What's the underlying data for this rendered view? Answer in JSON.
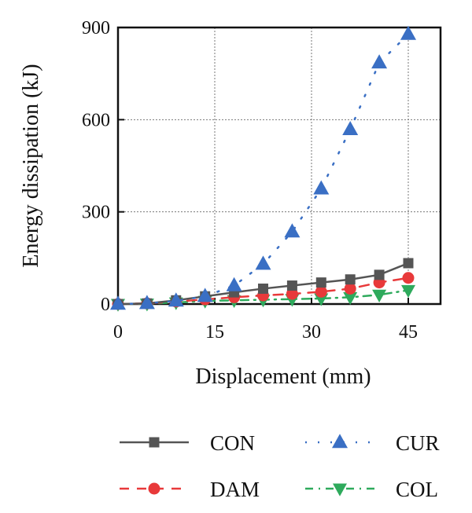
{
  "chart_data": {
    "type": "line",
    "xlabel": "Displacement (mm)",
    "ylabel": "Energy dissipation (kJ)",
    "xlim": [
      0,
      50
    ],
    "ylim": [
      0,
      900
    ],
    "xticks": [
      0,
      15,
      30,
      45
    ],
    "yticks": [
      0,
      300,
      600,
      900
    ],
    "grid": true,
    "legend_position": "bottom",
    "x": [
      0,
      4.5,
      9,
      13.5,
      18,
      22.5,
      27,
      31.5,
      36,
      40.5,
      45
    ],
    "series": [
      {
        "name": "CON",
        "color": "#555555",
        "marker": "square",
        "line": "solid",
        "values": [
          0,
          2,
          12,
          25,
          38,
          50,
          60,
          70,
          80,
          95,
          133
        ]
      },
      {
        "name": "CUR",
        "color": "#3a6fc4",
        "marker": "triangle-up",
        "line": "dotted",
        "values": [
          0,
          2,
          10,
          25,
          60,
          130,
          235,
          375,
          568,
          785,
          878
        ]
      },
      {
        "name": "DAM",
        "color": "#e8393a",
        "marker": "circle",
        "line": "dashed",
        "values": [
          0,
          2,
          8,
          15,
          22,
          28,
          33,
          40,
          50,
          70,
          85
        ]
      },
      {
        "name": "COL",
        "color": "#2eaa5c",
        "marker": "triangle-down",
        "line": "dashdot",
        "values": [
          0,
          1,
          5,
          10,
          12,
          14,
          16,
          18,
          22,
          30,
          45
        ]
      }
    ]
  }
}
